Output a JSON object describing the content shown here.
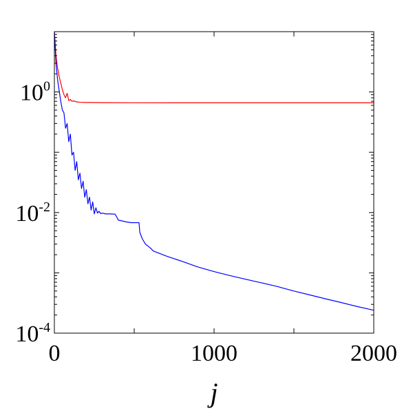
{
  "chart_data": {
    "type": "line",
    "title": "",
    "xlabel": "j",
    "ylabel": "",
    "xlim": [
      0,
      2000
    ],
    "ylim": [
      0.0001,
      10
    ],
    "yscale": "log",
    "grid": false,
    "x_ticks": [
      {
        "value": 0,
        "label": "0"
      },
      {
        "value": 1000,
        "label": "1000"
      },
      {
        "value": 2000,
        "label": "2000"
      }
    ],
    "y_ticks": [
      {
        "value": 1,
        "base": "10",
        "exp": "0"
      },
      {
        "value": 0.01,
        "base": "10",
        "exp": "-2"
      },
      {
        "value": 0.0001,
        "base": "10",
        "exp": "-4"
      }
    ],
    "series": [
      {
        "color": "#ff0000",
        "x": [
          0,
          10,
          20,
          30,
          40,
          50,
          60,
          70,
          80,
          90,
          100,
          110,
          120,
          140,
          160,
          200,
          300,
          500,
          1000,
          1500,
          2000
        ],
        "y": [
          10,
          4.0,
          2.5,
          1.8,
          1.4,
          1.1,
          0.9,
          0.8,
          0.95,
          0.72,
          0.75,
          0.7,
          0.71,
          0.685,
          0.675,
          0.67,
          0.665,
          0.662,
          0.66,
          0.66,
          0.66
        ]
      },
      {
        "color": "#0000ff",
        "x": [
          0,
          10,
          20,
          30,
          40,
          50,
          60,
          70,
          80,
          90,
          100,
          110,
          120,
          130,
          140,
          150,
          160,
          170,
          180,
          190,
          200,
          210,
          220,
          230,
          240,
          250,
          260,
          270,
          280,
          290,
          300,
          320,
          350,
          380,
          390,
          400,
          420,
          450,
          480,
          500,
          520,
          530,
          535,
          550,
          570,
          600,
          620,
          700,
          800,
          900,
          1000,
          1100,
          1200,
          1300,
          1400,
          1430,
          1500,
          1600,
          1700,
          1800,
          1900,
          2000
        ],
        "y": [
          10,
          3.0,
          1.6,
          1.05,
          0.7,
          0.5,
          0.45,
          0.25,
          0.3,
          0.15,
          0.2,
          0.09,
          0.1,
          0.05,
          0.07,
          0.035,
          0.045,
          0.025,
          0.033,
          0.018,
          0.024,
          0.014,
          0.018,
          0.011,
          0.015,
          0.0095,
          0.012,
          0.0098,
          0.0105,
          0.0096,
          0.0098,
          0.0095,
          0.0095,
          0.0094,
          0.0085,
          0.0075,
          0.0073,
          0.007,
          0.0068,
          0.0068,
          0.0068,
          0.0068,
          0.0047,
          0.0037,
          0.003,
          0.0026,
          0.0023,
          0.0019,
          0.00155,
          0.00125,
          0.00105,
          0.0009,
          0.00078,
          0.00068,
          0.00059,
          0.00056,
          0.0005,
          0.00043,
          0.00037,
          0.00032,
          0.000275,
          0.00024
        ]
      }
    ]
  }
}
